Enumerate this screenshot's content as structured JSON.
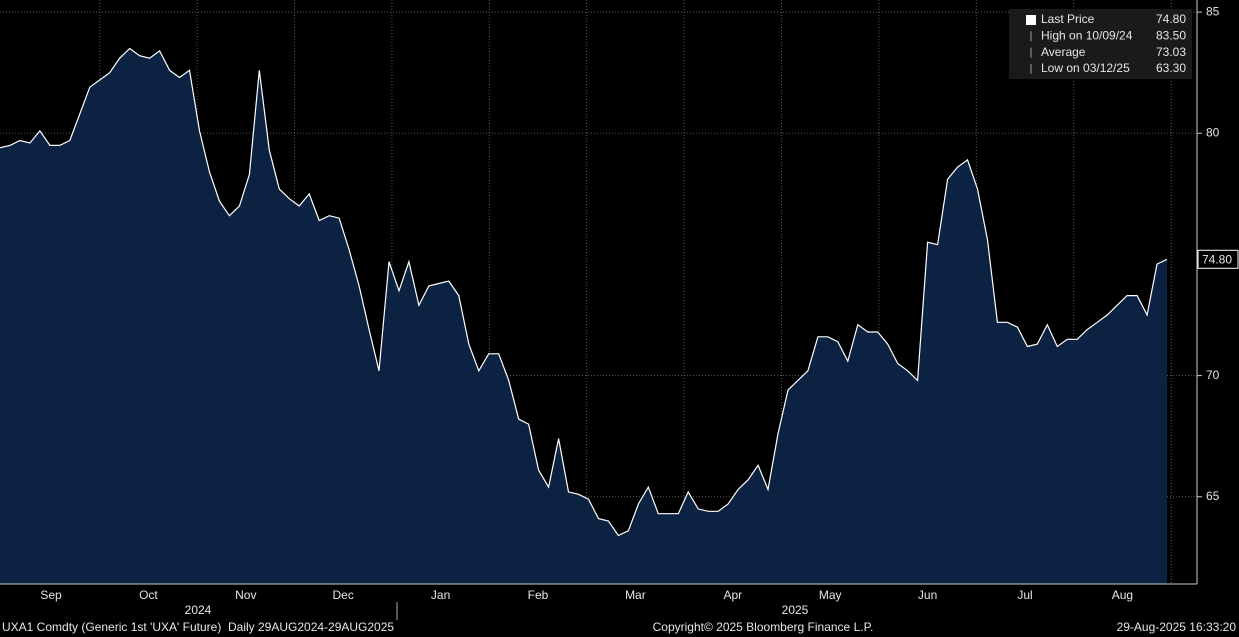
{
  "chart_data": {
    "type": "area",
    "series": [
      {
        "name": "Last Price",
        "color": "#ffffff",
        "fill": "#0c2242",
        "values": [
          79.4,
          79.5,
          79.7,
          79.6,
          80.1,
          79.5,
          79.5,
          79.7,
          80.8,
          81.9,
          82.2,
          82.5,
          83.1,
          83.5,
          83.2,
          83.1,
          83.4,
          82.6,
          82.3,
          82.6,
          80.1,
          78.4,
          77.2,
          76.6,
          77.0,
          78.3,
          82.6,
          79.3,
          77.7,
          77.3,
          77.0,
          77.5,
          76.4,
          76.6,
          76.5,
          75.2,
          73.7,
          71.9,
          70.2,
          74.7,
          73.5,
          74.7,
          72.9,
          73.7,
          73.8,
          73.9,
          73.3,
          71.3,
          70.2,
          70.9,
          70.9,
          69.8,
          68.2,
          68.0,
          66.1,
          65.4,
          67.4,
          65.2,
          65.1,
          64.9,
          64.1,
          64.0,
          63.4,
          63.6,
          64.7,
          65.4,
          64.3,
          64.3,
          64.3,
          65.2,
          64.5,
          64.4,
          64.4,
          64.7,
          65.3,
          65.7,
          66.3,
          65.3,
          67.6,
          69.4,
          69.8,
          70.2,
          71.6,
          71.6,
          71.4,
          70.6,
          72.1,
          71.8,
          71.8,
          71.3,
          70.5,
          70.2,
          69.8,
          75.5,
          75.4,
          78.1,
          78.6,
          78.9,
          77.7,
          75.6,
          72.2,
          72.2,
          72.0,
          71.2,
          71.3,
          72.1,
          71.2,
          71.5,
          71.5,
          71.9,
          72.2,
          72.5,
          72.9,
          73.3,
          73.3,
          72.5,
          74.6,
          74.8
        ]
      }
    ],
    "ylim": [
      61.4,
      85.5
    ],
    "yticks": [
      65,
      70,
      80,
      85
    ],
    "grid": true,
    "month_labels": [
      "Sep",
      "Oct",
      "Nov",
      "Dec",
      "Jan",
      "Feb",
      "Mar",
      "Apr",
      "May",
      "Jun",
      "Jul",
      "Aug"
    ],
    "year_labels": [
      "2024",
      "2025"
    ],
    "last_price": {
      "value": 74.8,
      "label": "74.80"
    },
    "legend": {
      "position": "upper right",
      "entries": [
        {
          "label": "Last Price",
          "value": "74.80"
        },
        {
          "label": "High on 10/09/24",
          "value": "83.50"
        },
        {
          "label": "Average",
          "value": "73.03"
        },
        {
          "label": "Low on 03/12/25",
          "value": "63.30"
        }
      ]
    },
    "footer": {
      "left": "UXA1 Comdty (Generic 1st 'UXA' Future)  Daily 29AUG2024-29AUG2025",
      "center": "Copyright© 2025 Bloomberg Finance L.P.",
      "right": "29-Aug-2025 16:33:20"
    }
  }
}
